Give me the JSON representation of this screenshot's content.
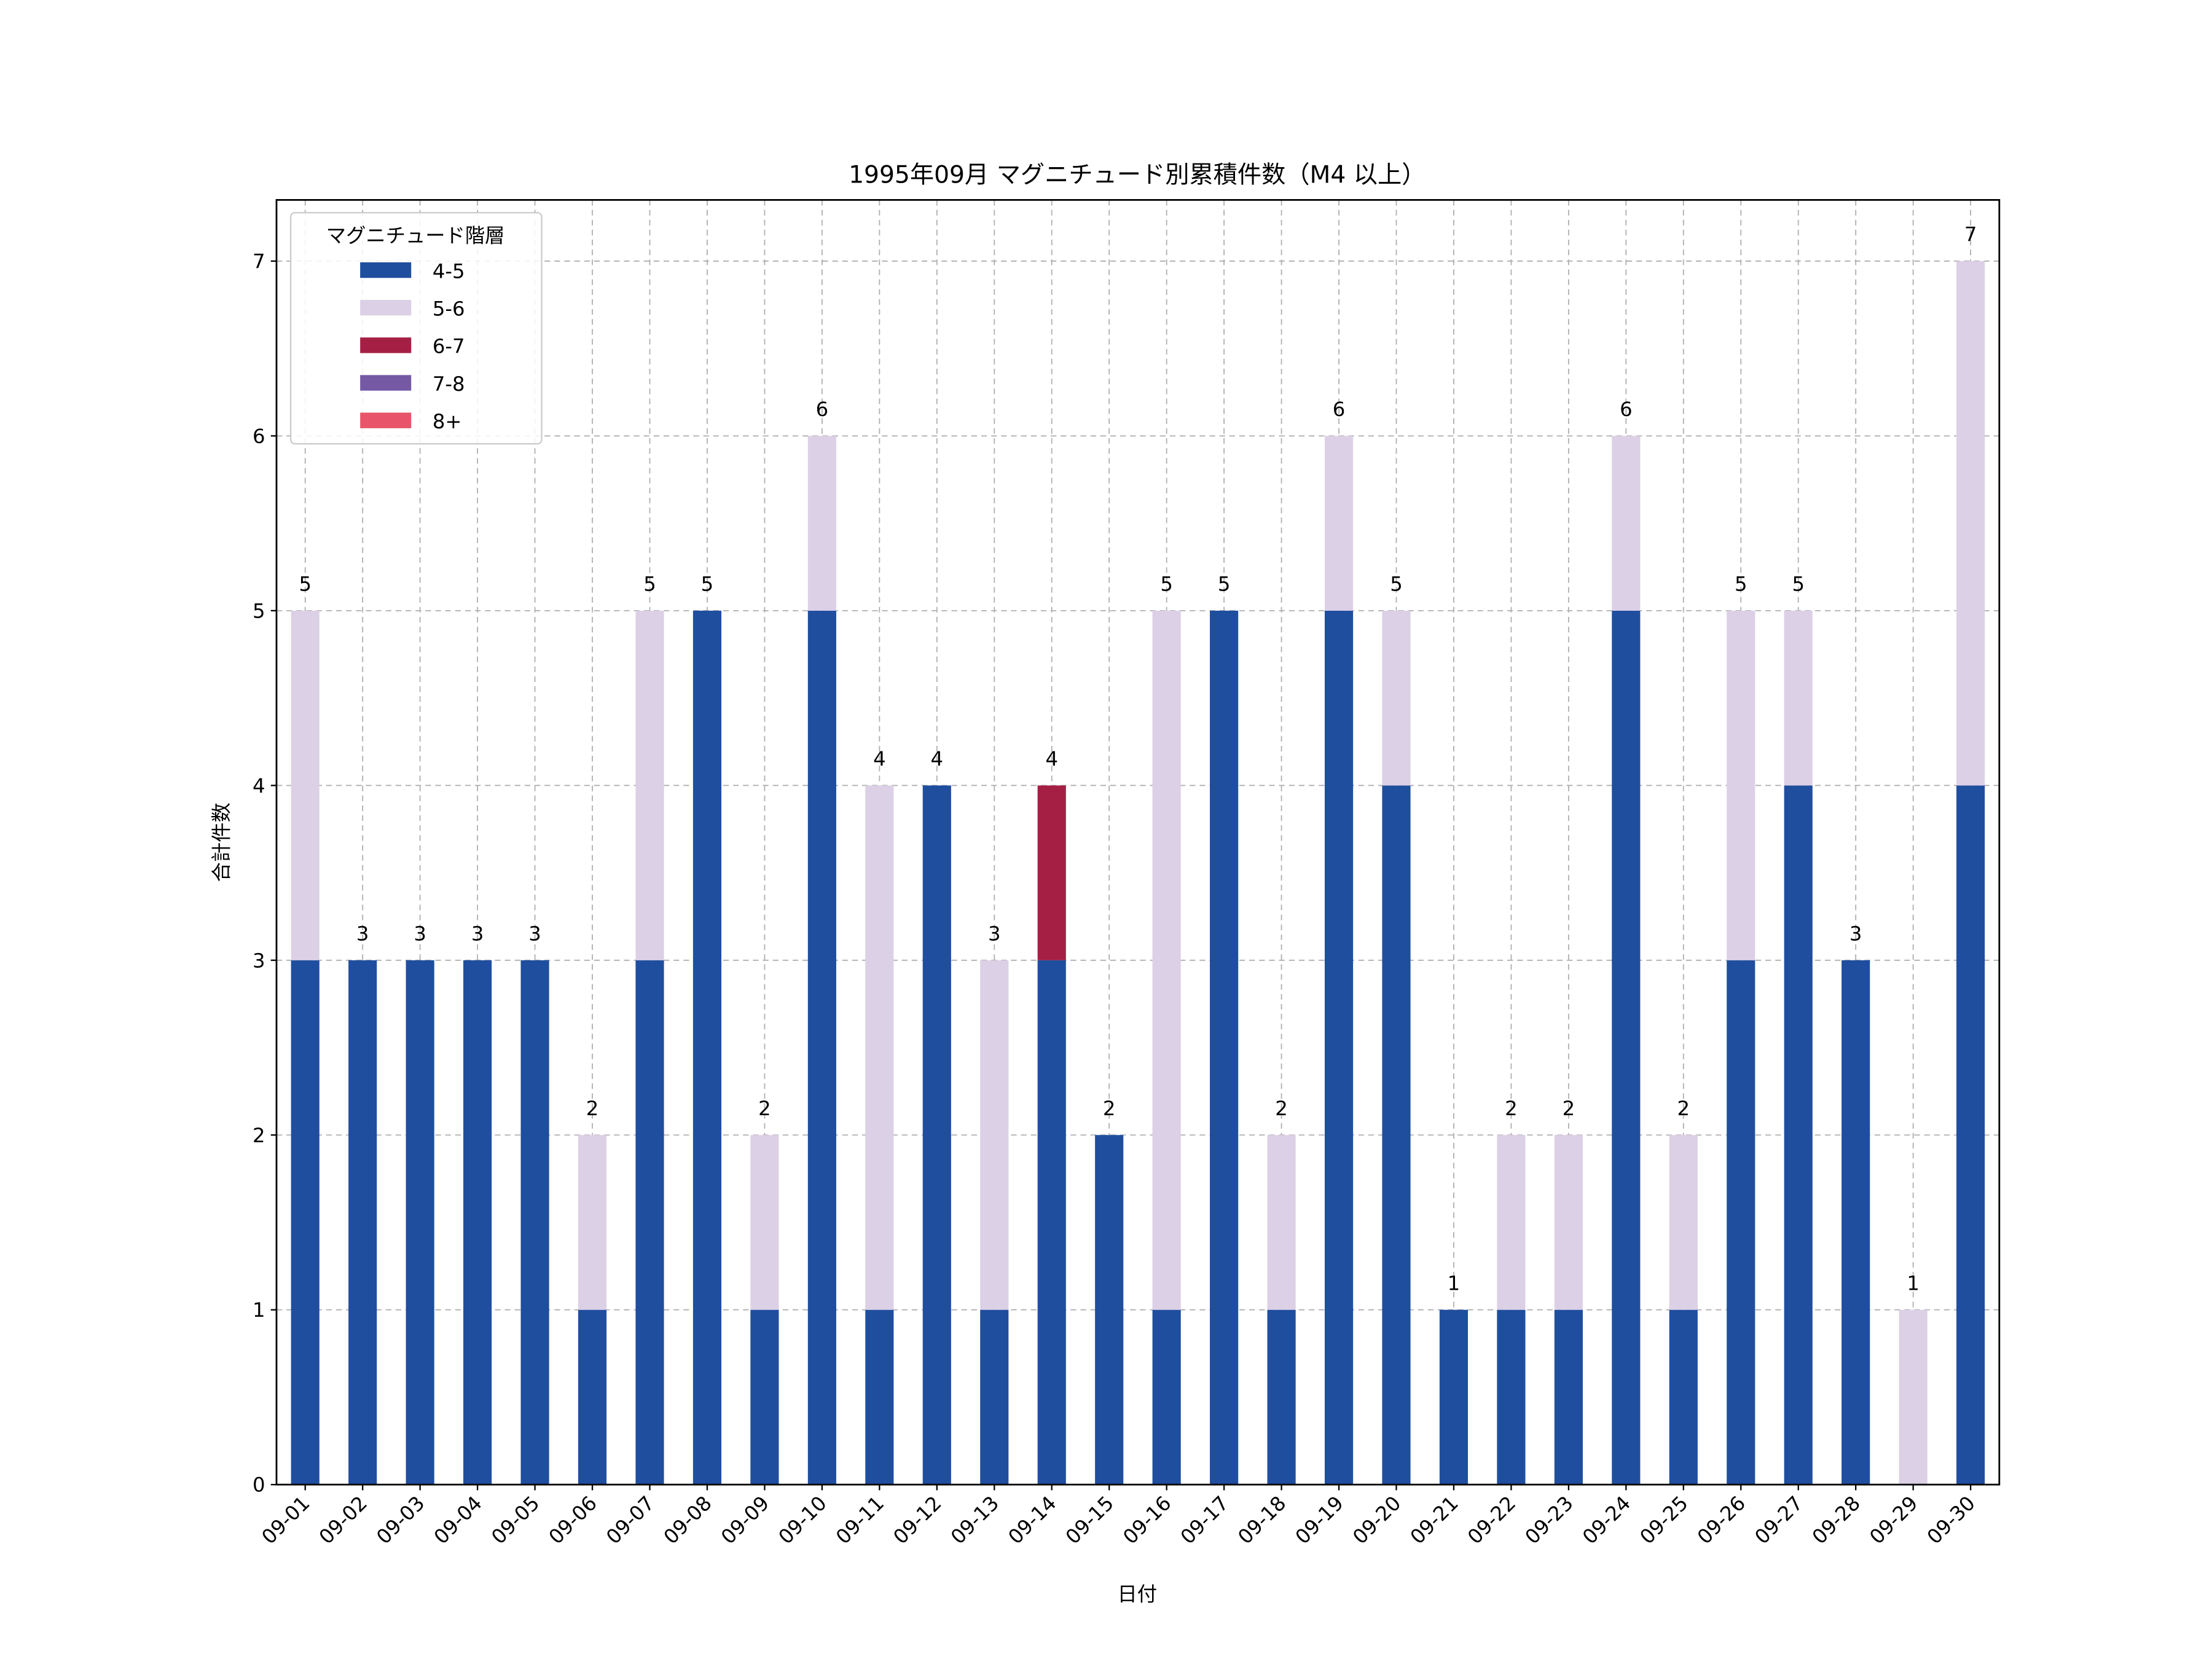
{
  "chart_data": {
    "type": "bar",
    "stacked": true,
    "title": "1995年09月 マグニチュード別累積件数（M4 以上）",
    "xlabel": "日付",
    "ylabel": "合計件数",
    "ylim": [
      0,
      7.35
    ],
    "yticks": [
      0,
      1,
      2,
      3,
      4,
      5,
      6,
      7
    ],
    "grid": true,
    "legend": {
      "title": "マグニチュード階層",
      "placement": "top-left"
    },
    "categories": [
      "09-01",
      "09-02",
      "09-03",
      "09-04",
      "09-05",
      "09-06",
      "09-07",
      "09-08",
      "09-09",
      "09-10",
      "09-11",
      "09-12",
      "09-13",
      "09-14",
      "09-15",
      "09-16",
      "09-17",
      "09-18",
      "09-19",
      "09-20",
      "09-21",
      "09-22",
      "09-23",
      "09-24",
      "09-25",
      "09-26",
      "09-27",
      "09-28",
      "09-29",
      "09-30"
    ],
    "series": [
      {
        "name": "4-5",
        "color": "#1f4e9f",
        "values": [
          3,
          3,
          3,
          3,
          3,
          1,
          3,
          5,
          1,
          5,
          1,
          4,
          1,
          3,
          2,
          1,
          5,
          1,
          5,
          4,
          1,
          1,
          1,
          5,
          1,
          3,
          4,
          3,
          0,
          4
        ]
      },
      {
        "name": "5-6",
        "color": "#dcd0e6",
        "values": [
          2,
          0,
          0,
          0,
          0,
          1,
          2,
          0,
          1,
          1,
          3,
          0,
          2,
          0,
          0,
          4,
          0,
          1,
          1,
          1,
          0,
          1,
          1,
          1,
          1,
          2,
          1,
          0,
          1,
          3
        ]
      },
      {
        "name": "6-7",
        "color": "#a51f45",
        "values": [
          0,
          0,
          0,
          0,
          0,
          0,
          0,
          0,
          0,
          0,
          0,
          0,
          0,
          1,
          0,
          0,
          0,
          0,
          0,
          0,
          0,
          0,
          0,
          0,
          0,
          0,
          0,
          0,
          0,
          0
        ]
      },
      {
        "name": "7-8",
        "color": "#7559a5",
        "values": [
          0,
          0,
          0,
          0,
          0,
          0,
          0,
          0,
          0,
          0,
          0,
          0,
          0,
          0,
          0,
          0,
          0,
          0,
          0,
          0,
          0,
          0,
          0,
          0,
          0,
          0,
          0,
          0,
          0,
          0
        ]
      },
      {
        "name": "8+",
        "color": "#e8556a",
        "values": [
          0,
          0,
          0,
          0,
          0,
          0,
          0,
          0,
          0,
          0,
          0,
          0,
          0,
          0,
          0,
          0,
          0,
          0,
          0,
          0,
          0,
          0,
          0,
          0,
          0,
          0,
          0,
          0,
          0,
          0
        ]
      }
    ],
    "totals": [
      5,
      3,
      3,
      3,
      3,
      2,
      5,
      5,
      2,
      6,
      4,
      4,
      3,
      4,
      2,
      5,
      5,
      2,
      6,
      5,
      1,
      2,
      2,
      6,
      2,
      5,
      5,
      3,
      1,
      7
    ]
  }
}
